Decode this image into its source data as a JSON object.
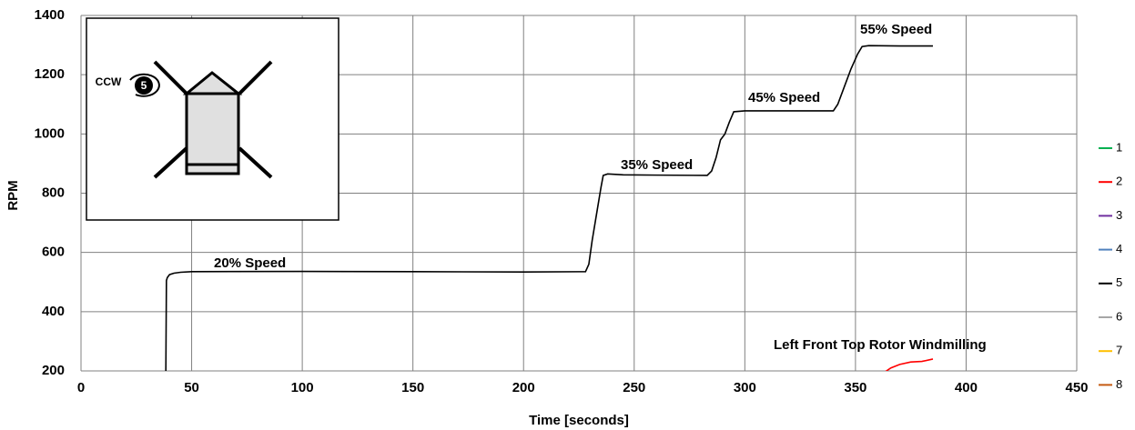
{
  "chart_data": {
    "type": "line",
    "xlabel": "Time [seconds]",
    "ylabel": "RPM",
    "xlim": [
      0,
      450
    ],
    "xticks": [
      0,
      50,
      100,
      150,
      200,
      250,
      300,
      350,
      400,
      450
    ],
    "ylim": [
      200,
      1400
    ],
    "yticks": [
      200,
      400,
      600,
      800,
      1000,
      1200,
      1400
    ],
    "grid": true,
    "legend": "right",
    "annotations": [
      "20% Speed",
      "35% Speed",
      "45% Speed",
      "55% Speed",
      "Left Front Top Rotor Windmilling"
    ],
    "inset": {
      "rotation_label": "CCW",
      "rotor_number": "5"
    },
    "series": [
      {
        "name": "1",
        "color": "#00b050",
        "x": [],
        "values": []
      },
      {
        "name": "2",
        "color": "#ff0000",
        "x": [
          363,
          366,
          370,
          375,
          380,
          385
        ],
        "values": [
          195,
          210,
          222,
          230,
          232,
          240
        ]
      },
      {
        "name": "3",
        "color": "#7030a0",
        "x": [],
        "values": []
      },
      {
        "name": "4",
        "color": "#4f81bd",
        "x": [],
        "values": []
      },
      {
        "name": "5",
        "color": "#000000",
        "x": [
          38.3,
          38.6,
          39,
          40,
          42,
          45,
          50,
          100,
          150,
          200,
          228,
          229.5,
          231,
          233,
          235,
          236,
          238,
          245,
          260,
          283,
          285,
          287,
          289,
          291,
          293,
          295,
          300,
          320,
          340,
          342,
          345,
          348,
          351,
          353,
          356,
          370,
          385
        ],
        "values": [
          150,
          505,
          515,
          525,
          530,
          533,
          535,
          536,
          535,
          534,
          535,
          560,
          640,
          730,
          820,
          860,
          865,
          862,
          861,
          860,
          875,
          920,
          980,
          1000,
          1040,
          1075,
          1078,
          1078,
          1078,
          1100,
          1160,
          1220,
          1270,
          1295,
          1298,
          1297,
          1297
        ]
      },
      {
        "name": "6",
        "color": "#a6a6a6",
        "x": [],
        "values": []
      },
      {
        "name": "7",
        "color": "#ffc000",
        "x": [],
        "values": []
      },
      {
        "name": "8",
        "color": "#c55a11",
        "x": [],
        "values": []
      }
    ]
  }
}
